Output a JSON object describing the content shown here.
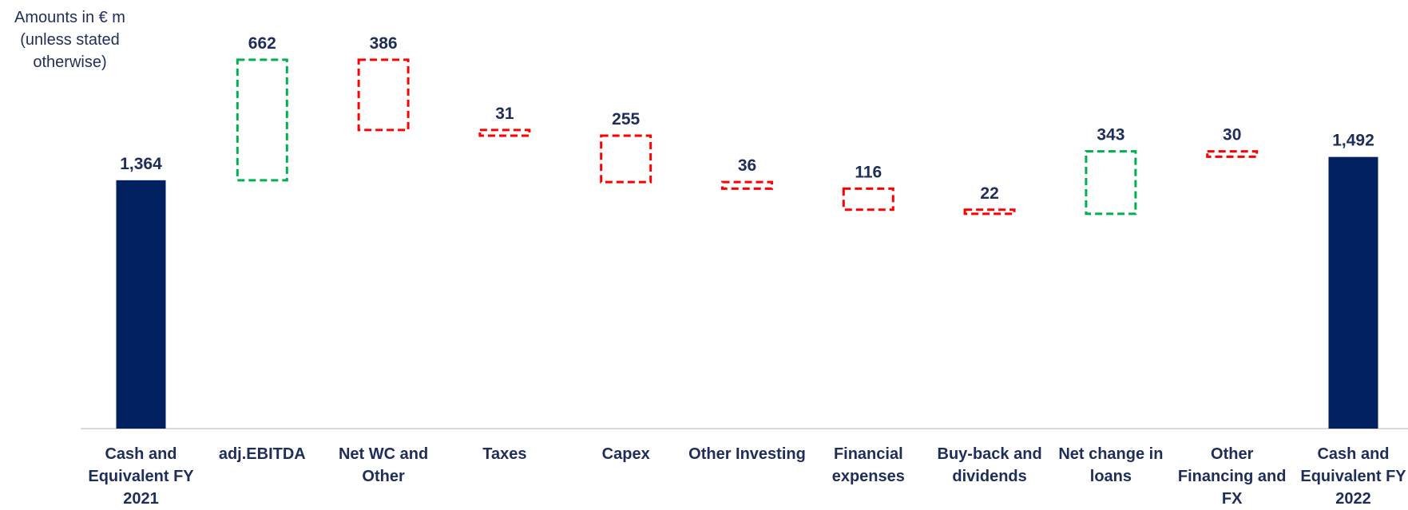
{
  "chart_data": {
    "type": "waterfall",
    "note": "Amounts in € m (unless stated otherwise)",
    "categories": [
      "Cash and Equivalent FY 2021",
      "adj.EBITDA",
      "Net WC and Other",
      "Taxes",
      "Capex",
      "Other Investing",
      "Financial expenses",
      "Buy-back and dividends",
      "Net change in loans",
      "Other Financing and FX",
      "Cash and Equivalent FY 2022"
    ],
    "values": [
      1364,
      662,
      -386,
      -31,
      -255,
      -36,
      -116,
      -22,
      343,
      -30,
      1492
    ],
    "value_labels": [
      "1,364",
      "662",
      "386",
      "31",
      "255",
      "36",
      "116",
      "22",
      "343",
      "30",
      "1,492"
    ],
    "colors": {
      "total": "#002060",
      "increase": "#00b050",
      "decrease": "#ff0000"
    },
    "ylim": [
      0,
      2354
    ]
  }
}
